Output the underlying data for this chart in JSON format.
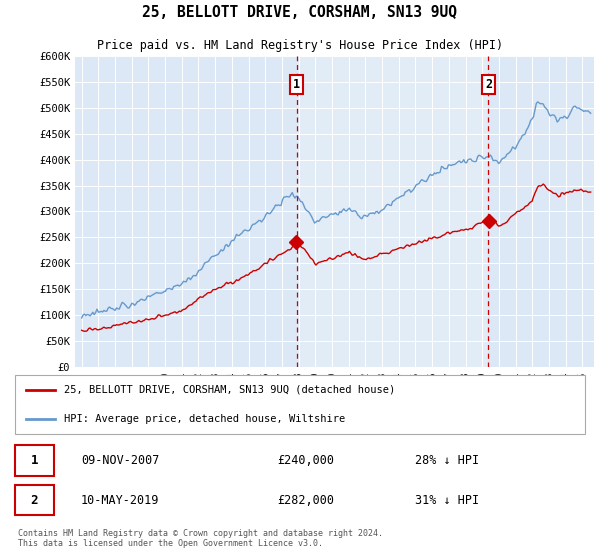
{
  "title": "25, BELLOTT DRIVE, CORSHAM, SN13 9UQ",
  "subtitle": "Price paid vs. HM Land Registry's House Price Index (HPI)",
  "plot_bg_color": "#dce8f5",
  "plot_bg_color2": "#e8f0f8",
  "ylim": [
    0,
    600000
  ],
  "yticks": [
    0,
    50000,
    100000,
    150000,
    200000,
    250000,
    300000,
    350000,
    400000,
    450000,
    500000,
    550000,
    600000
  ],
  "ytick_labels": [
    "£0",
    "£50K",
    "£100K",
    "£150K",
    "£200K",
    "£250K",
    "£300K",
    "£350K",
    "£400K",
    "£450K",
    "£500K",
    "£550K",
    "£600K"
  ],
  "sale1_yr": 2007.875,
  "sale1_price": 240000,
  "sale2_yr": 2019.375,
  "sale2_price": 282000,
  "legend_red_label": "25, BELLOTT DRIVE, CORSHAM, SN13 9UQ (detached house)",
  "legend_blue_label": "HPI: Average price, detached house, Wiltshire",
  "table_row1": [
    "1",
    "09-NOV-2007",
    "£240,000",
    "28% ↓ HPI"
  ],
  "table_row2": [
    "2",
    "10-MAY-2019",
    "£282,000",
    "31% ↓ HPI"
  ],
  "footer": "Contains HM Land Registry data © Crown copyright and database right 2024.\nThis data is licensed under the Open Government Licence v3.0.",
  "red_color": "#cc0000",
  "blue_color": "#6699cc",
  "vline_color": "#cc0000",
  "xlim_left": 1994.6,
  "xlim_right": 2025.7
}
